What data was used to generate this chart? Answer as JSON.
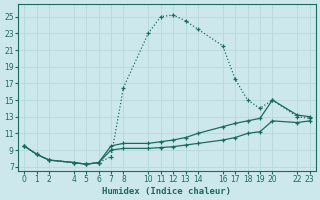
{
  "xlabel": "Humidex (Indice chaleur)",
  "bg_color": "#cde8ec",
  "grid_color": "#b8d8dc",
  "line_color": "#1a6b5e",
  "xlim": [
    -0.5,
    23.5
  ],
  "ylim": [
    6.5,
    26.5
  ],
  "xticks": [
    0,
    1,
    2,
    4,
    5,
    6,
    7,
    8,
    10,
    11,
    12,
    13,
    14,
    16,
    17,
    18,
    19,
    20,
    22,
    23
  ],
  "xticklabels": [
    "0",
    "1",
    "2",
    "4",
    "5",
    "6",
    "7",
    "8",
    "10",
    "11",
    "12",
    "13",
    "14",
    "16",
    "17",
    "18",
    "19",
    "20",
    "22",
    "23"
  ],
  "yticks": [
    7,
    9,
    11,
    13,
    15,
    17,
    19,
    21,
    23,
    25
  ],
  "series": [
    {
      "x": [
        0,
        1,
        2,
        4,
        5,
        6,
        7,
        8,
        10,
        11,
        12,
        13,
        14,
        16,
        17,
        18,
        19,
        20,
        22,
        23
      ],
      "y": [
        9.5,
        8.5,
        7.8,
        7.5,
        7.3,
        7.5,
        8.2,
        16.5,
        23.0,
        25.0,
        25.2,
        24.5,
        23.5,
        21.5,
        17.5,
        15.0,
        14.0,
        15.0,
        13.0,
        12.8
      ],
      "linestyle": ":"
    },
    {
      "x": [
        0,
        1,
        2,
        4,
        5,
        6,
        7,
        8,
        10,
        11,
        12,
        13,
        14,
        16,
        17,
        18,
        19,
        20,
        22,
        23
      ],
      "y": [
        9.5,
        8.5,
        7.8,
        7.5,
        7.3,
        7.5,
        9.5,
        9.8,
        9.8,
        10.0,
        10.2,
        10.5,
        11.0,
        11.8,
        12.2,
        12.5,
        12.8,
        15.0,
        13.2,
        13.0
      ],
      "linestyle": "-"
    },
    {
      "x": [
        0,
        1,
        2,
        4,
        5,
        6,
        7,
        8,
        10,
        11,
        12,
        13,
        14,
        16,
        17,
        18,
        19,
        20,
        22,
        23
      ],
      "y": [
        9.5,
        8.5,
        7.8,
        7.5,
        7.3,
        7.5,
        9.0,
        9.2,
        9.2,
        9.3,
        9.4,
        9.6,
        9.8,
        10.2,
        10.5,
        11.0,
        11.2,
        12.5,
        12.3,
        12.5
      ],
      "linestyle": "-"
    }
  ]
}
